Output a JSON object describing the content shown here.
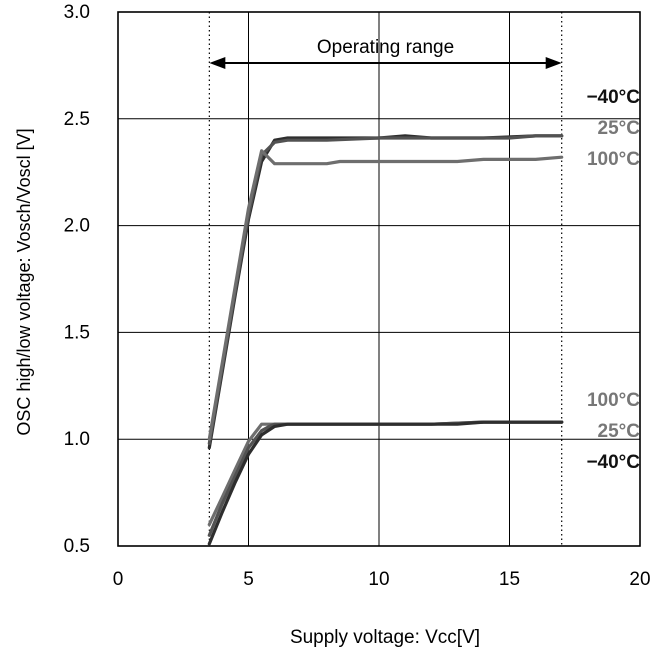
{
  "chart_data": {
    "type": "line",
    "title": "",
    "xlabel": "Supply voltage: Vcc[V]",
    "ylabel": "OSC high/low voltage: Vosch/Voscl [V]",
    "xlim": [
      0,
      20
    ],
    "ylim": [
      0.5,
      3.0
    ],
    "xticks": [
      "0",
      "5",
      "10",
      "15",
      "20"
    ],
    "yticks": [
      "0.5",
      "1.0",
      "1.5",
      "2.0",
      "2.5",
      "3.0"
    ],
    "grid": true,
    "operating_range": {
      "label": "Operating range",
      "from": 3.5,
      "to": 17
    },
    "series": [
      {
        "group": "high",
        "name": "−40°C",
        "color": "#2e2e2e",
        "x": [
          3.5,
          4.0,
          4.5,
          5.0,
          5.5,
          6.0,
          6.5,
          8.0,
          10.0,
          11.0,
          12.0,
          14.0,
          16.0,
          17.0
        ],
        "y": [
          0.96,
          1.32,
          1.68,
          2.03,
          2.3,
          2.4,
          2.41,
          2.41,
          2.41,
          2.42,
          2.41,
          2.41,
          2.42,
          2.42
        ]
      },
      {
        "group": "high",
        "name": "25°C",
        "color": "#525252",
        "x": [
          3.5,
          4.0,
          4.5,
          5.0,
          5.5,
          6.0,
          6.5,
          8.0,
          10.0,
          12.0,
          14.0,
          15.0,
          16.0,
          17.0
        ],
        "y": [
          0.98,
          1.34,
          1.7,
          2.05,
          2.33,
          2.39,
          2.4,
          2.4,
          2.41,
          2.41,
          2.41,
          2.41,
          2.42,
          2.42
        ]
      },
      {
        "group": "high",
        "name": "100°C",
        "color": "#6e6e6e",
        "x": [
          3.5,
          4.0,
          4.5,
          5.0,
          5.5,
          6.0,
          7.0,
          8.0,
          8.5,
          10.0,
          12.0,
          13.0,
          14.0,
          16.0,
          17.0
        ],
        "y": [
          1.0,
          1.36,
          1.72,
          2.08,
          2.35,
          2.29,
          2.29,
          2.29,
          2.3,
          2.3,
          2.3,
          2.3,
          2.31,
          2.31,
          2.32
        ]
      },
      {
        "group": "low",
        "name": "100°C",
        "color": "#6e6e6e",
        "x": [
          3.5,
          4.0,
          4.5,
          5.0,
          5.5,
          6.0,
          8.0,
          10.0,
          12.0,
          14.0,
          16.0,
          17.0
        ],
        "y": [
          0.6,
          0.73,
          0.86,
          0.99,
          1.07,
          1.07,
          1.07,
          1.07,
          1.07,
          1.08,
          1.08,
          1.08
        ]
      },
      {
        "group": "low",
        "name": "25°C",
        "color": "#525252",
        "x": [
          3.5,
          4.0,
          4.5,
          5.0,
          5.5,
          5.8,
          6.0,
          8.0,
          10.0,
          12.0,
          14.0,
          16.0,
          17.0
        ],
        "y": [
          0.55,
          0.7,
          0.83,
          0.96,
          1.04,
          1.06,
          1.07,
          1.07,
          1.07,
          1.07,
          1.08,
          1.08,
          1.08
        ]
      },
      {
        "group": "low",
        "name": "−40°C",
        "color": "#2e2e2e",
        "x": [
          3.5,
          4.0,
          4.5,
          5.0,
          5.5,
          6.0,
          6.5,
          8.0,
          10.0,
          13.0,
          14.0,
          16.0,
          17.0
        ],
        "y": [
          0.51,
          0.66,
          0.8,
          0.93,
          1.02,
          1.06,
          1.07,
          1.07,
          1.07,
          1.07,
          1.08,
          1.08,
          1.08
        ]
      }
    ],
    "legend_labels": {
      "high": [
        {
          "text": "−40°C",
          "color": "#111111"
        },
        {
          "text": "25°C",
          "color": "#777777"
        },
        {
          "text": "100°C",
          "color": "#777777"
        }
      ],
      "low": [
        {
          "text": "100°C",
          "color": "#777777"
        },
        {
          "text": "25°C",
          "color": "#777777"
        },
        {
          "text": "−40°C",
          "color": "#111111"
        }
      ]
    }
  }
}
